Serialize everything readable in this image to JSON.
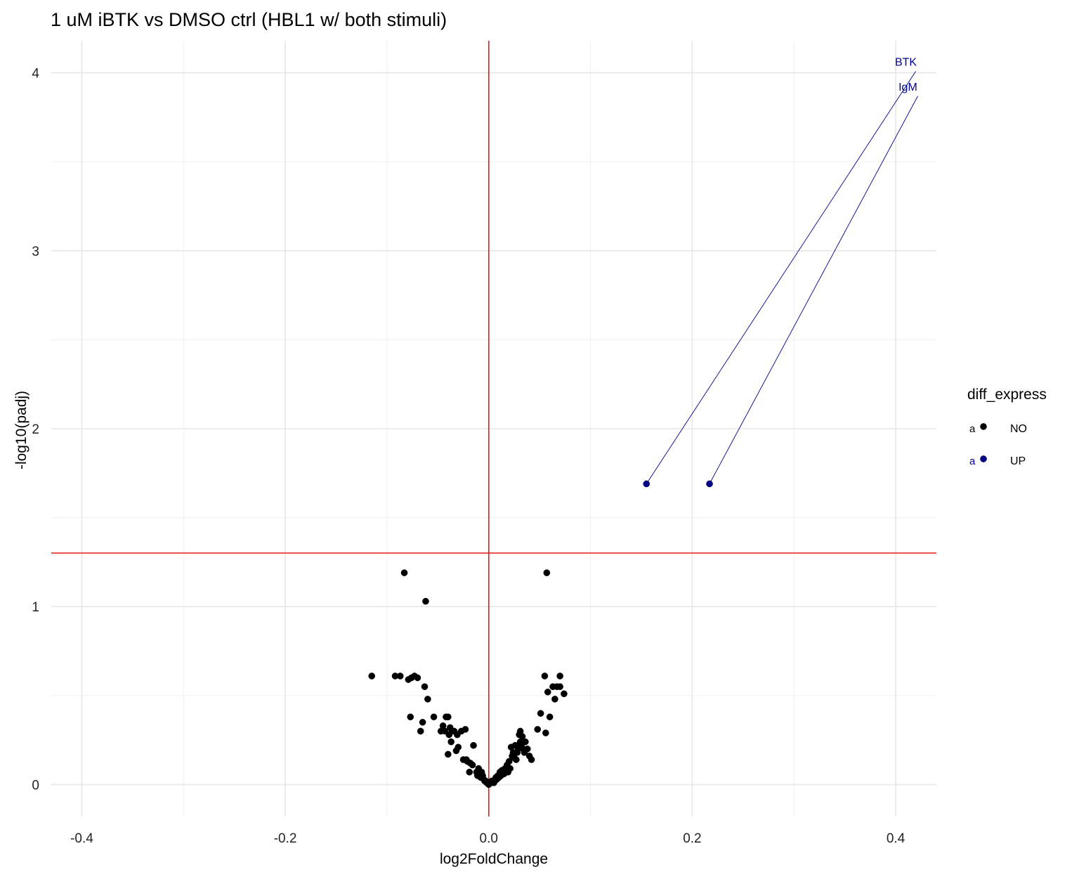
{
  "chart_data": {
    "type": "scatter",
    "title": "1 uM iBTK vs DMSO ctrl (HBL1 w/ both stimuli)",
    "xlabel": "log2FoldChange",
    "ylabel": "-log10(padj)",
    "xlim": [
      -0.43,
      0.44
    ],
    "ylim": [
      -0.18,
      4.18
    ],
    "x_ticks": [
      -0.4,
      -0.2,
      0.0,
      0.2,
      0.4
    ],
    "x_tick_labels": [
      "-0.4",
      "-0.2",
      "0.0",
      "0.2",
      "0.4"
    ],
    "y_ticks": [
      0,
      1,
      2,
      3,
      4
    ],
    "y_tick_labels": [
      "0",
      "1",
      "2",
      "3",
      "4"
    ],
    "grid": true,
    "reference_lines": {
      "vertical_x": 0.0,
      "horizontal_y": 1.301,
      "color": "#e41a1c"
    },
    "legend": {
      "title": "diff_express",
      "position": "right",
      "key_glyph_text": "a",
      "entries": [
        {
          "label": "NO",
          "color": "#000000"
        },
        {
          "label": "UP",
          "color": "#00008b"
        }
      ]
    },
    "series": [
      {
        "name": "NO",
        "color": "#000000",
        "points": [
          [
            -0.115,
            0.61
          ],
          [
            -0.092,
            0.61
          ],
          [
            -0.087,
            0.61
          ],
          [
            -0.083,
            1.19
          ],
          [
            -0.079,
            0.59
          ],
          [
            -0.077,
            0.38
          ],
          [
            -0.076,
            0.6
          ],
          [
            -0.073,
            0.61
          ],
          [
            -0.07,
            0.6
          ],
          [
            -0.067,
            0.3
          ],
          [
            -0.065,
            0.35
          ],
          [
            -0.063,
            0.55
          ],
          [
            -0.062,
            1.03
          ],
          [
            -0.06,
            0.48
          ],
          [
            -0.054,
            0.38
          ],
          [
            -0.047,
            0.3
          ],
          [
            -0.045,
            0.33
          ],
          [
            -0.043,
            0.3
          ],
          [
            -0.042,
            0.38
          ],
          [
            -0.04,
            0.38
          ],
          [
            -0.04,
            0.17
          ],
          [
            -0.039,
            0.28
          ],
          [
            -0.038,
            0.32
          ],
          [
            -0.037,
            0.24
          ],
          [
            -0.036,
            0.3
          ],
          [
            -0.034,
            0.3
          ],
          [
            -0.032,
            0.19
          ],
          [
            -0.031,
            0.28
          ],
          [
            -0.03,
            0.21
          ],
          [
            -0.027,
            0.3
          ],
          [
            -0.025,
            0.14
          ],
          [
            -0.023,
            0.31
          ],
          [
            -0.022,
            0.14
          ],
          [
            -0.021,
            0.13
          ],
          [
            -0.019,
            0.07
          ],
          [
            -0.018,
            0.12
          ],
          [
            -0.016,
            0.11
          ],
          [
            -0.015,
            0.22
          ],
          [
            -0.012,
            0.07
          ],
          [
            -0.011,
            0.05
          ],
          [
            -0.01,
            0.09
          ],
          [
            -0.009,
            0.06
          ],
          [
            -0.008,
            0.04
          ],
          [
            -0.007,
            0.07
          ],
          [
            -0.006,
            0.05
          ],
          [
            -0.005,
            0.03
          ],
          [
            -0.004,
            0.02
          ],
          [
            -0.003,
            0.02
          ],
          [
            -0.002,
            0.01
          ],
          [
            -0.001,
            0.01
          ],
          [
            0.0,
            0.0
          ],
          [
            0.001,
            0.01
          ],
          [
            0.002,
            0.01
          ],
          [
            0.003,
            0.02
          ],
          [
            0.004,
            0.02
          ],
          [
            0.005,
            0.01
          ],
          [
            0.006,
            0.02
          ],
          [
            0.007,
            0.04
          ],
          [
            0.008,
            0.03
          ],
          [
            0.009,
            0.05
          ],
          [
            0.01,
            0.04
          ],
          [
            0.011,
            0.07
          ],
          [
            0.012,
            0.05
          ],
          [
            0.013,
            0.08
          ],
          [
            0.015,
            0.06
          ],
          [
            0.016,
            0.09
          ],
          [
            0.017,
            0.07
          ],
          [
            0.018,
            0.11
          ],
          [
            0.019,
            0.07
          ],
          [
            0.02,
            0.13
          ],
          [
            0.021,
            0.09
          ],
          [
            0.022,
            0.21
          ],
          [
            0.023,
            0.16
          ],
          [
            0.024,
            0.18
          ],
          [
            0.025,
            0.15
          ],
          [
            0.026,
            0.22
          ],
          [
            0.027,
            0.14
          ],
          [
            0.028,
            0.18
          ],
          [
            0.029,
            0.2
          ],
          [
            0.03,
            0.28
          ],
          [
            0.031,
            0.3
          ],
          [
            0.031,
            0.24
          ],
          [
            0.032,
            0.22
          ],
          [
            0.033,
            0.27
          ],
          [
            0.034,
            0.2
          ],
          [
            0.035,
            0.18
          ],
          [
            0.036,
            0.24
          ],
          [
            0.038,
            0.2
          ],
          [
            0.04,
            0.16
          ],
          [
            0.042,
            0.14
          ],
          [
            0.048,
            0.31
          ],
          [
            0.051,
            0.4
          ],
          [
            0.055,
            0.61
          ],
          [
            0.056,
            0.29
          ],
          [
            0.057,
            1.19
          ],
          [
            0.058,
            0.52
          ],
          [
            0.06,
            0.38
          ],
          [
            0.063,
            0.55
          ],
          [
            0.065,
            0.48
          ],
          [
            0.067,
            0.55
          ],
          [
            0.07,
            0.61
          ],
          [
            0.07,
            0.55
          ],
          [
            0.074,
            0.51
          ]
        ]
      },
      {
        "name": "UP",
        "color": "#00008b",
        "points": [
          [
            0.155,
            1.69,
            "BTK"
          ],
          [
            0.217,
            1.69,
            "IgM"
          ]
        ]
      }
    ],
    "annotations": [
      {
        "text": "BTK",
        "x": 0.41,
        "y": 4.04,
        "point_x": 0.155,
        "point_y": 1.69,
        "color": "#00008b"
      },
      {
        "text": "IgM",
        "x": 0.412,
        "y": 3.9,
        "point_x": 0.217,
        "point_y": 1.69,
        "color": "#00008b"
      }
    ]
  }
}
